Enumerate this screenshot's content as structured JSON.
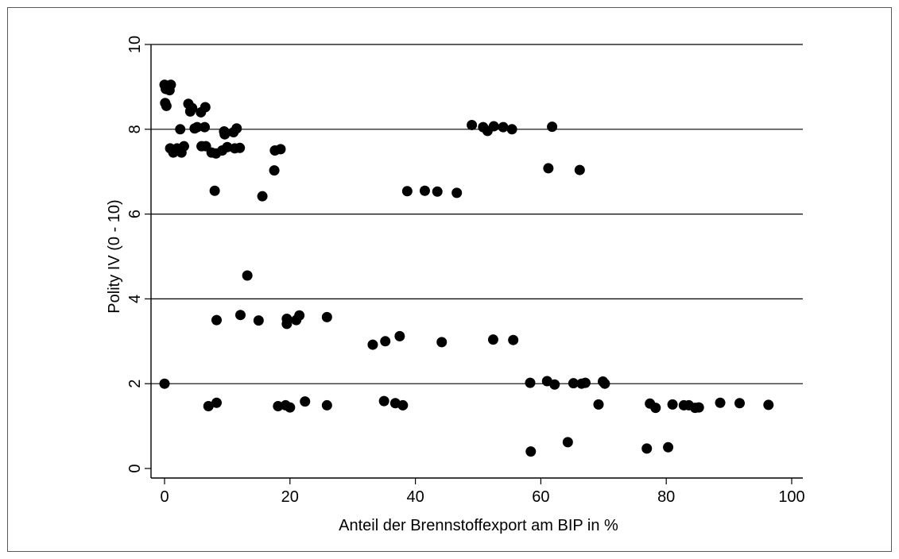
{
  "chart_data": {
    "type": "scatter",
    "title": "",
    "xlabel": "Anteil der Brennstoffexport am BIP in %",
    "ylabel": "Polity IV (0 - 10)",
    "xlim": [
      0,
      100
    ],
    "ylim": [
      0,
      10
    ],
    "x_ticks": [
      0,
      20,
      40,
      60,
      80,
      100
    ],
    "y_ticks": [
      0,
      2,
      4,
      6,
      8,
      10
    ],
    "grid": "horizontal",
    "legend": "none",
    "marker_color": "#000000",
    "points": [
      {
        "x": 0.0,
        "y": 9.05
      },
      {
        "x": 0.2,
        "y": 8.95
      },
      {
        "x": 0.5,
        "y": 9.0
      },
      {
        "x": 0.8,
        "y": 8.92
      },
      {
        "x": 1.0,
        "y": 9.05
      },
      {
        "x": 0.1,
        "y": 8.62
      },
      {
        "x": 0.3,
        "y": 8.55
      },
      {
        "x": 0.9,
        "y": 7.55
      },
      {
        "x": 1.4,
        "y": 7.45
      },
      {
        "x": 2.0,
        "y": 7.55
      },
      {
        "x": 2.5,
        "y": 8.0
      },
      {
        "x": 2.7,
        "y": 7.45
      },
      {
        "x": 3.1,
        "y": 7.6
      },
      {
        "x": 3.8,
        "y": 8.6
      },
      {
        "x": 4.1,
        "y": 8.42
      },
      {
        "x": 4.4,
        "y": 8.5
      },
      {
        "x": 4.8,
        "y": 8.02
      },
      {
        "x": 5.2,
        "y": 8.05
      },
      {
        "x": 5.8,
        "y": 8.4
      },
      {
        "x": 5.9,
        "y": 7.6
      },
      {
        "x": 6.5,
        "y": 8.52
      },
      {
        "x": 6.4,
        "y": 8.05
      },
      {
        "x": 6.6,
        "y": 7.6
      },
      {
        "x": 7.5,
        "y": 7.45
      },
      {
        "x": 8.2,
        "y": 7.43
      },
      {
        "x": 8.0,
        "y": 6.55
      },
      {
        "x": 9.2,
        "y": 7.5
      },
      {
        "x": 9.5,
        "y": 7.95
      },
      {
        "x": 9.6,
        "y": 7.88
      },
      {
        "x": 10.0,
        "y": 7.58
      },
      {
        "x": 11.0,
        "y": 7.93
      },
      {
        "x": 11.2,
        "y": 7.55
      },
      {
        "x": 11.5,
        "y": 8.02
      },
      {
        "x": 12.0,
        "y": 7.56
      },
      {
        "x": 15.6,
        "y": 6.42
      },
      {
        "x": 17.5,
        "y": 7.03
      },
      {
        "x": 17.6,
        "y": 7.5
      },
      {
        "x": 18.5,
        "y": 7.53
      },
      {
        "x": 0.0,
        "y": 2.0
      },
      {
        "x": 7.0,
        "y": 1.47
      },
      {
        "x": 8.3,
        "y": 3.5
      },
      {
        "x": 8.3,
        "y": 1.55
      },
      {
        "x": 12.1,
        "y": 3.62
      },
      {
        "x": 13.2,
        "y": 4.55
      },
      {
        "x": 15.0,
        "y": 3.49
      },
      {
        "x": 18.1,
        "y": 1.47
      },
      {
        "x": 19.3,
        "y": 1.49
      },
      {
        "x": 19.5,
        "y": 3.53
      },
      {
        "x": 19.5,
        "y": 3.41
      },
      {
        "x": 20.0,
        "y": 1.44
      },
      {
        "x": 21.0,
        "y": 3.5
      },
      {
        "x": 21.5,
        "y": 3.61
      },
      {
        "x": 22.4,
        "y": 1.58
      },
      {
        "x": 25.9,
        "y": 3.57
      },
      {
        "x": 25.9,
        "y": 1.49
      },
      {
        "x": 33.2,
        "y": 2.92
      },
      {
        "x": 35.0,
        "y": 1.59
      },
      {
        "x": 35.2,
        "y": 3.0
      },
      {
        "x": 36.8,
        "y": 1.54
      },
      {
        "x": 37.5,
        "y": 3.12
      },
      {
        "x": 38.0,
        "y": 1.49
      },
      {
        "x": 38.7,
        "y": 6.54
      },
      {
        "x": 41.5,
        "y": 6.55
      },
      {
        "x": 43.5,
        "y": 6.53
      },
      {
        "x": 44.2,
        "y": 2.98
      },
      {
        "x": 46.6,
        "y": 6.5
      },
      {
        "x": 49.0,
        "y": 8.1
      },
      {
        "x": 50.8,
        "y": 8.05
      },
      {
        "x": 51.5,
        "y": 7.96
      },
      {
        "x": 52.5,
        "y": 8.07
      },
      {
        "x": 54.0,
        "y": 8.05
      },
      {
        "x": 55.4,
        "y": 8.0
      },
      {
        "x": 52.4,
        "y": 3.04
      },
      {
        "x": 55.6,
        "y": 3.03
      },
      {
        "x": 58.3,
        "y": 2.02
      },
      {
        "x": 58.4,
        "y": 0.4
      },
      {
        "x": 61.2,
        "y": 7.08
      },
      {
        "x": 61.8,
        "y": 8.06
      },
      {
        "x": 61.0,
        "y": 2.06
      },
      {
        "x": 62.2,
        "y": 1.98
      },
      {
        "x": 64.3,
        "y": 0.62
      },
      {
        "x": 65.2,
        "y": 2.01
      },
      {
        "x": 66.2,
        "y": 7.04
      },
      {
        "x": 66.5,
        "y": 2.0
      },
      {
        "x": 67.1,
        "y": 2.02
      },
      {
        "x": 69.2,
        "y": 1.51
      },
      {
        "x": 69.9,
        "y": 2.05
      },
      {
        "x": 70.2,
        "y": 2.0
      },
      {
        "x": 76.9,
        "y": 0.47
      },
      {
        "x": 77.4,
        "y": 1.53
      },
      {
        "x": 78.3,
        "y": 1.43
      },
      {
        "x": 80.3,
        "y": 0.5
      },
      {
        "x": 81.0,
        "y": 1.51
      },
      {
        "x": 82.8,
        "y": 1.49
      },
      {
        "x": 83.6,
        "y": 1.49
      },
      {
        "x": 84.6,
        "y": 1.43
      },
      {
        "x": 85.2,
        "y": 1.44
      },
      {
        "x": 88.6,
        "y": 1.55
      },
      {
        "x": 91.7,
        "y": 1.54
      },
      {
        "x": 96.3,
        "y": 1.5
      }
    ]
  }
}
